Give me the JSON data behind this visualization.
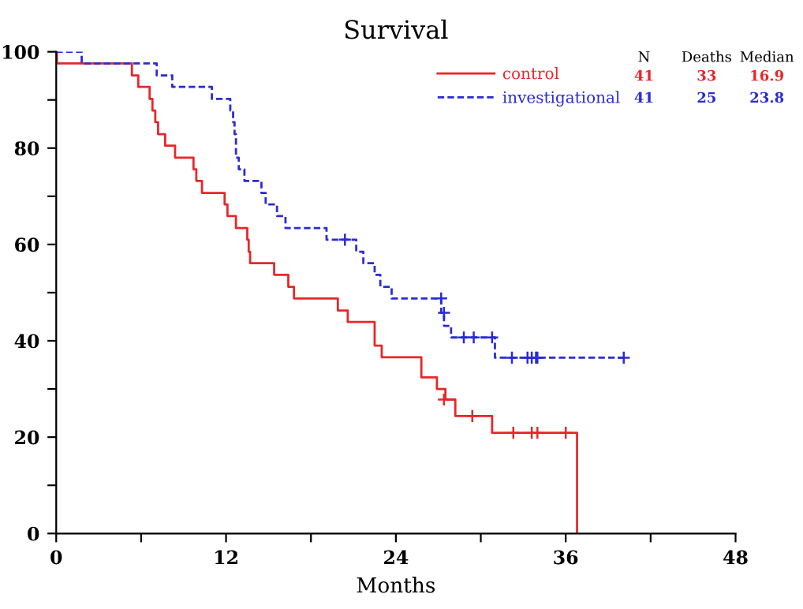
{
  "chart_data": {
    "type": "step",
    "title": "Survival",
    "xlabel": "Months",
    "xlim": [
      0,
      48
    ],
    "ylim": [
      0,
      100
    ],
    "xticks": [
      0,
      {
        "value": 6,
        "label": null
      },
      12,
      {
        "value": 18,
        "label": null
      },
      24,
      {
        "value": 30,
        "label": null
      },
      36,
      {
        "value": 42,
        "label": null
      },
      48
    ],
    "yticks": [
      0,
      {
        "value": 10,
        "label": null
      },
      20,
      {
        "value": 30,
        "label": null
      },
      40,
      {
        "value": 50,
        "label": null
      },
      60,
      {
        "value": 70,
        "label": null
      },
      80,
      {
        "value": 90,
        "label": null
      },
      100
    ],
    "grid": false,
    "legend": "top right",
    "annotations": [
      "N",
      "Deaths",
      "Median",
      "41",
      "33",
      "16.9",
      "41",
      "25",
      "23.8"
    ],
    "series": [
      {
        "name": "control",
        "color": "#e8262a",
        "line_style": "solid",
        "x": [
          0,
          0.05,
          5.35,
          5.8,
          6.6,
          6.8,
          7.0,
          7.2,
          7.7,
          8.4,
          9.7,
          9.9,
          10.3,
          11.9,
          12.1,
          12.7,
          13.5,
          13.6,
          13.7,
          15.4,
          16.4,
          16.8,
          19.9,
          20.6,
          22.5,
          23.0,
          25.8,
          26.9,
          27.5,
          28.2,
          30.8,
          36.8,
          36.8
        ],
        "values": [
          100,
          97.6,
          95.1,
          92.7,
          90.2,
          87.8,
          85.4,
          82.9,
          80.5,
          78.0,
          75.6,
          73.2,
          70.7,
          68.3,
          65.9,
          63.4,
          61.0,
          58.5,
          56.1,
          53.7,
          51.2,
          48.8,
          46.3,
          43.9,
          39.0,
          36.6,
          32.4,
          30.0,
          27.8,
          24.4,
          20.9,
          20.9,
          0
        ]
      },
      {
        "name": "investigational",
        "color": "#2b2bd6",
        "line_style": "dashed",
        "x": [
          0,
          1.8,
          7.1,
          8.2,
          11.0,
          12.3,
          12.5,
          12.6,
          12.7,
          12.9,
          13.3,
          14.5,
          14.8,
          15.6,
          16.2,
          19.1,
          21.2,
          21.7,
          22.5,
          22.9,
          23.7,
          27.2,
          27.4,
          27.9,
          31.0,
          40.1
        ],
        "values": [
          100,
          97.6,
          95.1,
          92.7,
          90.2,
          87.8,
          85.4,
          82.9,
          78.0,
          75.6,
          73.2,
          70.7,
          68.3,
          65.9,
          63.4,
          61.0,
          58.5,
          56.1,
          53.7,
          51.2,
          48.8,
          45.8,
          43.1,
          40.7,
          36.5,
          36.5
        ]
      },
      {
        "type": "scatter",
        "color": "#e8262a",
        "marker": "cross",
        "x": [
          27.4,
          29.4,
          32.3,
          33.6,
          34.0,
          36.0
        ],
        "values": [
          27.8,
          24.4,
          20.9,
          20.9,
          20.9,
          20.9
        ]
      },
      {
        "type": "scatter",
        "color": "#2b2bd6",
        "marker": "cross",
        "x": [
          20.4,
          27.2,
          27.4,
          28.8,
          29.5,
          30.8,
          32.2,
          33.3,
          33.6,
          33.9,
          34.0,
          40.1
        ],
        "values": [
          61.0,
          48.8,
          45.8,
          40.7,
          40.7,
          40.7,
          36.5,
          36.5,
          36.5,
          36.5,
          36.5,
          36.5
        ]
      }
    ]
  }
}
